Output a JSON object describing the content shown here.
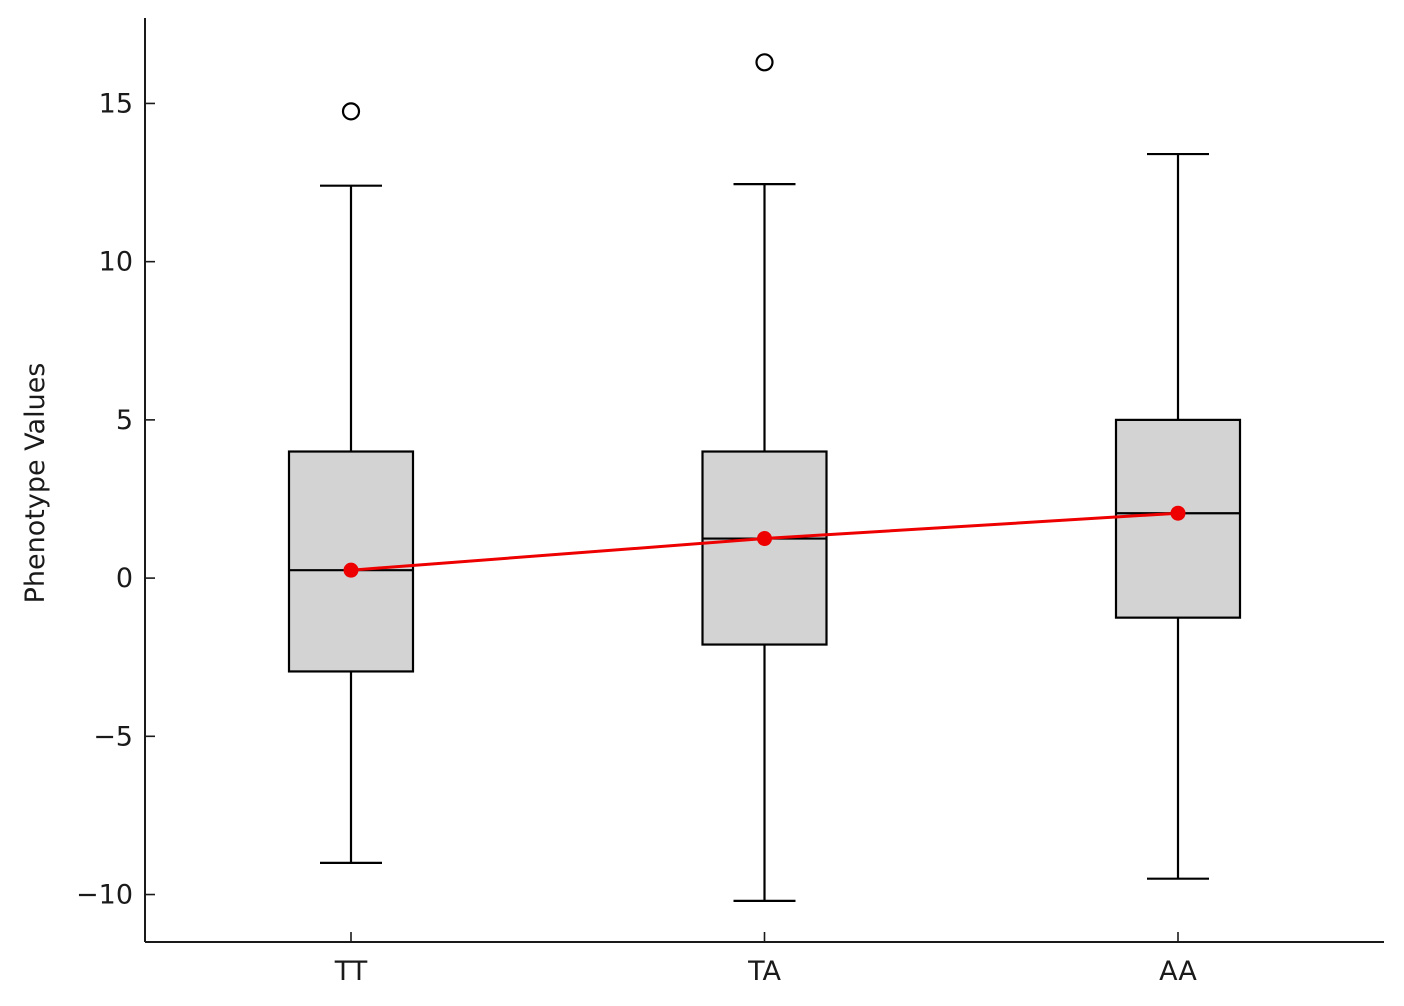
{
  "chart_data": {
    "type": "box",
    "categories": [
      "TT",
      "TA",
      "AA"
    ],
    "ylabel": "Phenotype Values",
    "xlabel": "",
    "ylim": [
      -11.5,
      17.7
    ],
    "yticks": [
      -10,
      -5,
      0,
      5,
      10,
      15
    ],
    "ytick_labels": [
      "−10",
      "−5",
      "0",
      "5",
      "10",
      "15"
    ],
    "grid": false,
    "box_fill": "#d3d3d3",
    "box_stroke": "#000000",
    "mean_color": "#ee0000",
    "boxes": [
      {
        "category": "TT",
        "whisker_low": -9.0,
        "q1": -2.95,
        "median": 0.25,
        "q3": 4.0,
        "whisker_high": 12.4,
        "outliers": [
          14.75
        ],
        "mean": 0.25
      },
      {
        "category": "TA",
        "whisker_low": -10.2,
        "q1": -2.1,
        "median": 1.25,
        "q3": 4.0,
        "whisker_high": 12.45,
        "outliers": [
          16.3
        ],
        "mean": 1.25
      },
      {
        "category": "AA",
        "whisker_low": -9.5,
        "q1": -1.25,
        "median": 2.05,
        "q3": 5.0,
        "whisker_high": 13.4,
        "outliers": [],
        "mean": 2.05
      }
    ]
  }
}
